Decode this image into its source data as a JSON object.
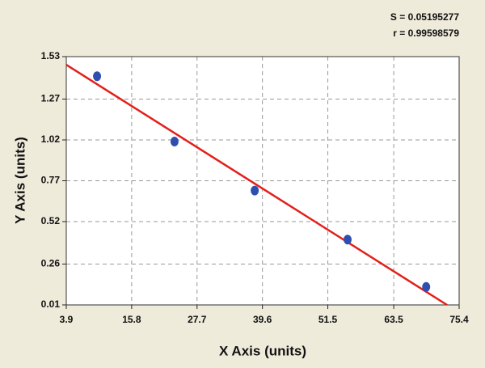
{
  "chart_data": {
    "type": "scatter",
    "annotations": [
      "S = 0.05195277",
      "r = 0.99598579"
    ],
    "x_label": "X Axis (units)",
    "y_label": "Y Axis (units)",
    "x": [
      9.5,
      23.6,
      38.2,
      55.1,
      69.4
    ],
    "values": [
      1.41,
      1.01,
      0.71,
      0.41,
      0.12
    ],
    "color": "#2f4fb0",
    "fit": {
      "x": [
        3.9,
        73.2
      ],
      "y": [
        1.48,
        0.01
      ],
      "color": "#e3201b"
    },
    "xlim": [
      3.9,
      75.4
    ],
    "ylim": [
      0.01,
      1.53
    ],
    "xticks": [
      3.9,
      15.8,
      27.7,
      39.6,
      51.5,
      63.5,
      75.4
    ],
    "yticks": [
      0.01,
      0.26,
      0.52,
      0.77,
      1.02,
      1.27,
      1.53
    ],
    "grid": true
  }
}
